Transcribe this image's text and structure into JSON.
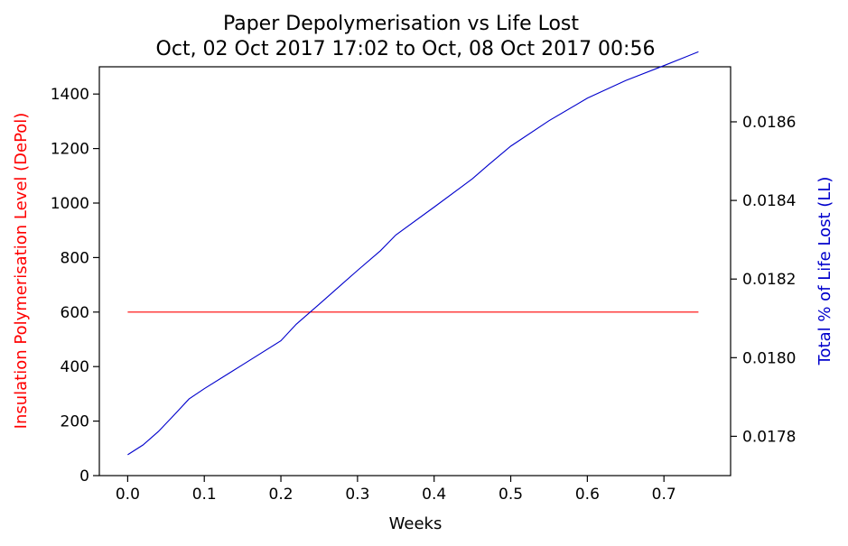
{
  "chart_data": {
    "type": "line",
    "title": "Paper Depolymerisation vs Life Lost",
    "subtitle": "Oct, 02 Oct 2017 17:02 to Oct, 08 Oct 2017 00:56",
    "xlabel": "Weeks",
    "ylabel_left": "Insulation Polymerisation Level (DePol)",
    "ylabel_right": "Total % of Life Lost (LL)",
    "xlim": [
      -0.037,
      0.787
    ],
    "ylim_left": [
      0,
      1500
    ],
    "ylim_right": [
      0.0177,
      0.01874
    ],
    "xticks": [
      0.0,
      0.1,
      0.2,
      0.3,
      0.4,
      0.5,
      0.6,
      0.7
    ],
    "xtick_labels": [
      "0.0",
      "0.1",
      "0.2",
      "0.3",
      "0.4",
      "0.5",
      "0.6",
      "0.7"
    ],
    "yticks_left": [
      0,
      200,
      400,
      600,
      800,
      1000,
      1200,
      1400
    ],
    "ytick_labels_left": [
      "0",
      "200",
      "400",
      "600",
      "800",
      "1000",
      "1200",
      "1400"
    ],
    "yticks_right": [
      0.0178,
      0.018,
      0.0182,
      0.0184,
      0.0186
    ],
    "ytick_labels_right": [
      "0.0178",
      "0.0180",
      "0.0182",
      "0.0184",
      "0.0186"
    ],
    "grid": false,
    "series": [
      {
        "axis": "left",
        "color": "#ff0000",
        "x": [
          0.0,
          0.1,
          0.2,
          0.3,
          0.4,
          0.5,
          0.6,
          0.7,
          0.745
        ],
        "y": [
          600,
          600,
          600,
          600,
          600,
          600,
          600,
          600,
          600
        ]
      },
      {
        "axis": "right",
        "color": "#0000cc",
        "x": [
          0.0,
          0.02,
          0.04,
          0.06,
          0.08,
          0.1,
          0.15,
          0.2,
          0.22,
          0.25,
          0.3,
          0.33,
          0.35,
          0.4,
          0.45,
          0.47,
          0.5,
          0.55,
          0.6,
          0.65,
          0.7,
          0.745
        ],
        "y": [
          0.017753,
          0.017778,
          0.017812,
          0.017853,
          0.017895,
          0.017921,
          0.017982,
          0.018043,
          0.018085,
          0.018136,
          0.018222,
          0.018272,
          0.018312,
          0.018383,
          0.018455,
          0.018489,
          0.018538,
          0.018603,
          0.01866,
          0.018705,
          0.018743,
          0.018778
        ]
      }
    ]
  }
}
